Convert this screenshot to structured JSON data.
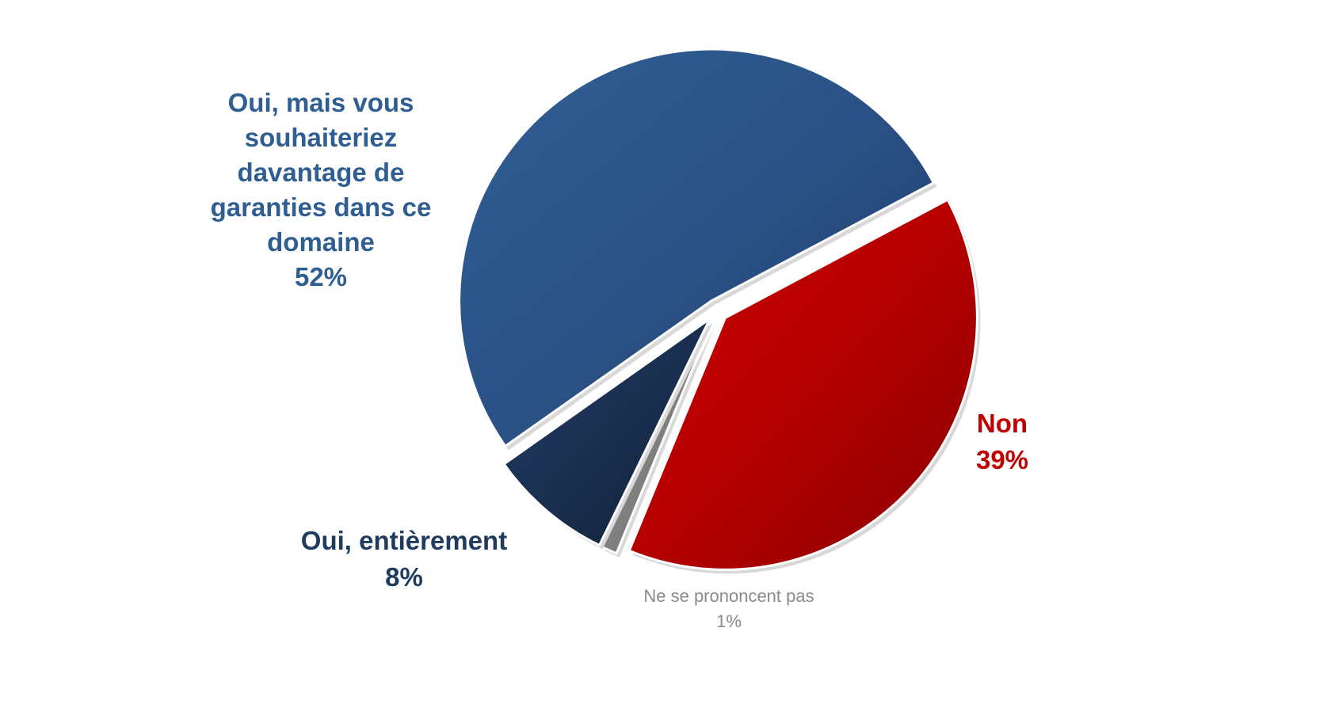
{
  "chart_data": {
    "type": "pie",
    "slices": [
      {
        "label": "Oui, mais vous souhaiteriez davantage de garanties dans ce domaine",
        "value": 52,
        "value_label": "52%",
        "color": "#2b5287",
        "color_dark": "#1c3a66",
        "color_light": "#2f5f94"
      },
      {
        "label": "Non",
        "value": 39,
        "value_label": "39%",
        "color": "#b50000",
        "color_dark": "#8a0000",
        "color_light": "#cc0000"
      },
      {
        "label": "Ne se prononcent pas",
        "value": 1,
        "value_label": "1%",
        "color": "#808080",
        "color_dark": "#6a6a6a",
        "color_light": "#9a9a9a"
      },
      {
        "label": "Oui, entièrement",
        "value": 8,
        "value_label": "8%",
        "color": "#1a2f50",
        "color_dark": "#0f1f38",
        "color_light": "#22406a"
      }
    ],
    "label_lines": {
      "oui_mais": [
        "Oui, mais vous",
        "souhaiteriez",
        "davantage de",
        "garanties dans ce",
        "domaine",
        "52%"
      ]
    },
    "legend": "none",
    "exploded": true
  }
}
